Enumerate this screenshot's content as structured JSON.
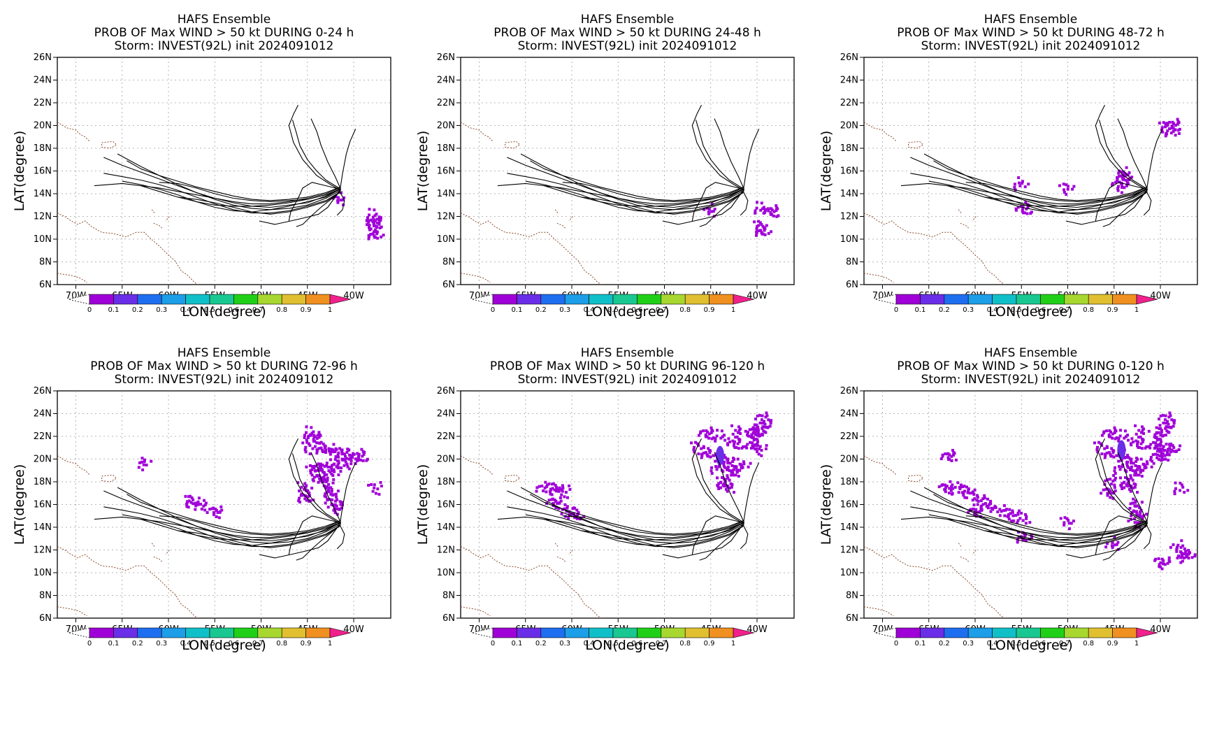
{
  "panels": [
    {
      "title1": "HAFS Ensemble",
      "title2": "PROB OF Max WIND > 50 kt DURING  0-24 h",
      "title3": "Storm: INVEST(92L) init 2024091012",
      "id": "p0024"
    },
    {
      "title1": "HAFS Ensemble",
      "title2": "PROB OF Max WIND > 50 kt DURING 24-48 h",
      "title3": "Storm: INVEST(92L) init 2024091012",
      "id": "p2448"
    },
    {
      "title1": "HAFS Ensemble",
      "title2": "PROB OF Max WIND > 50 kt DURING 48-72 h",
      "title3": "Storm: INVEST(92L) init 2024091012",
      "id": "p4872"
    },
    {
      "title1": "HAFS Ensemble",
      "title2": "PROB OF Max WIND > 50 kt DURING 72-96 h",
      "title3": "Storm: INVEST(92L) init 2024091012",
      "id": "p7296"
    },
    {
      "title1": "HAFS Ensemble",
      "title2": "PROB OF Max WIND > 50 kt DURING 96-120 h",
      "title3": "Storm: INVEST(92L) init 2024091012",
      "id": "p96120"
    },
    {
      "title1": "HAFS Ensemble",
      "title2": "PROB OF Max WIND > 50 kt DURING 0-120 h",
      "title3": "Storm: INVEST(92L) init 2024091012",
      "id": "p0120"
    }
  ],
  "axes": {
    "xlabel": "LON(degree)",
    "ylabel": "LAT(degree)",
    "xlim": [
      -72,
      -36
    ],
    "ylim": [
      6,
      26
    ],
    "xticks": [
      {
        "v": -70,
        "l": "70W"
      },
      {
        "v": -65,
        "l": "65W"
      },
      {
        "v": -60,
        "l": "60W"
      },
      {
        "v": -55,
        "l": "55W"
      },
      {
        "v": -50,
        "l": "50W"
      },
      {
        "v": -45,
        "l": "45W"
      },
      {
        "v": -40,
        "l": "40W"
      }
    ],
    "yticks": [
      {
        "v": 6,
        "l": "6N"
      },
      {
        "v": 8,
        "l": "8N"
      },
      {
        "v": 10,
        "l": "10N"
      },
      {
        "v": 12,
        "l": "12N"
      },
      {
        "v": 14,
        "l": "14N"
      },
      {
        "v": 16,
        "l": "16N"
      },
      {
        "v": 18,
        "l": "18N"
      },
      {
        "v": 20,
        "l": "20N"
      },
      {
        "v": 22,
        "l": "22N"
      },
      {
        "v": 24,
        "l": "24N"
      },
      {
        "v": 26,
        "l": "26N"
      }
    ],
    "grid": "dotted"
  },
  "colorbar": {
    "labels": [
      "0",
      "0.1",
      "0.2",
      "0.3",
      "0.4",
      "0.5",
      "0.6",
      "0.7",
      "0.8",
      "0.9",
      "1"
    ],
    "colors": [
      "#a000d8",
      "#6a2ee8",
      "#1e6ef0",
      "#1c9ee8",
      "#10c0c8",
      "#18c890",
      "#20d018",
      "#a8d830",
      "#e0c030",
      "#f09020",
      "#f04030"
    ],
    "overflow": "#f0208c"
  },
  "chart_data": {
    "type": "map",
    "tracks_lonlat": [
      [
        [
          -41.4,
          14.4
        ],
        [
          -43,
          13.8
        ],
        [
          -45,
          13.2
        ],
        [
          -47,
          13
        ],
        [
          -49,
          12.8
        ],
        [
          -51,
          12.9
        ],
        [
          -53,
          13.2
        ],
        [
          -55,
          13.6
        ],
        [
          -57,
          14.1
        ],
        [
          -59,
          14.8
        ],
        [
          -61,
          15.6
        ],
        [
          -63,
          16.4
        ],
        [
          -65.5,
          17.5
        ]
      ],
      [
        [
          -41.4,
          14.3
        ],
        [
          -43,
          13.6
        ],
        [
          -45,
          13.0
        ],
        [
          -47,
          12.7
        ],
        [
          -49,
          12.6
        ],
        [
          -51,
          12.7
        ],
        [
          -53,
          13.0
        ],
        [
          -55,
          13.5
        ],
        [
          -57,
          14.1
        ],
        [
          -59,
          14.7
        ],
        [
          -61,
          15.3
        ],
        [
          -63,
          15.9
        ],
        [
          -65,
          16.5
        ],
        [
          -67,
          17.2
        ]
      ],
      [
        [
          -41.5,
          14.4
        ],
        [
          -43,
          13.7
        ],
        [
          -45,
          13.3
        ],
        [
          -47,
          12.9
        ],
        [
          -49,
          12.6
        ],
        [
          -51,
          12.4
        ],
        [
          -53,
          12.5
        ],
        [
          -55,
          12.8
        ],
        [
          -57,
          13.3
        ],
        [
          -59,
          13.9
        ],
        [
          -61,
          14.4
        ],
        [
          -63,
          14.8
        ],
        [
          -65,
          15.1
        ]
      ],
      [
        [
          -41.4,
          14.2
        ],
        [
          -43,
          13.4
        ],
        [
          -45,
          12.9
        ],
        [
          -47,
          12.5
        ],
        [
          -49,
          12.3
        ],
        [
          -51,
          12.3
        ],
        [
          -53,
          12.6
        ],
        [
          -55,
          13.1
        ],
        [
          -57,
          13.7
        ],
        [
          -59,
          14.3
        ],
        [
          -61,
          14.8
        ],
        [
          -63,
          15.2
        ],
        [
          -65,
          15.5
        ],
        [
          -67,
          15.8
        ]
      ],
      [
        [
          -41.5,
          14.5
        ],
        [
          -43,
          14.0
        ],
        [
          -45,
          13.6
        ],
        [
          -47,
          13.3
        ],
        [
          -49,
          13.1
        ],
        [
          -51,
          13.1
        ],
        [
          -53,
          13.3
        ],
        [
          -55,
          13.6
        ],
        [
          -57,
          13.9
        ],
        [
          -59,
          14.2
        ],
        [
          -61,
          14.5
        ],
        [
          -63,
          14.7
        ]
      ],
      [
        [
          -41.4,
          14.6
        ],
        [
          -43,
          14.1
        ],
        [
          -45,
          13.7
        ],
        [
          -47,
          13.5
        ],
        [
          -49,
          13.4
        ],
        [
          -51,
          13.5
        ],
        [
          -53,
          13.8
        ],
        [
          -55,
          14.2
        ],
        [
          -57,
          14.6
        ],
        [
          -59,
          15.1
        ],
        [
          -61,
          15.6
        ],
        [
          -63,
          16.2
        ],
        [
          -64.5,
          16.9
        ]
      ],
      [
        [
          -41.6,
          14.3
        ],
        [
          -43,
          13.9
        ],
        [
          -45,
          13.5
        ],
        [
          -47,
          13.4
        ],
        [
          -49,
          13.3
        ],
        [
          -51,
          13.4
        ],
        [
          -53,
          13.6
        ],
        [
          -55,
          14.0
        ],
        [
          -57,
          14.5
        ],
        [
          -59,
          14.9
        ],
        [
          -61,
          15.0
        ]
      ],
      [
        [
          -41.5,
          14.1
        ],
        [
          -43,
          13.3
        ],
        [
          -45,
          12.8
        ],
        [
          -47,
          12.4
        ],
        [
          -49,
          12.2
        ],
        [
          -51,
          12.4
        ],
        [
          -53,
          12.8
        ],
        [
          -55,
          13.2
        ],
        [
          -57,
          13.5
        ],
        [
          -59,
          13.7
        ]
      ],
      [
        [
          -41.5,
          14.4
        ],
        [
          -43,
          13.9
        ],
        [
          -45,
          13.5
        ],
        [
          -47,
          13.2
        ],
        [
          -49,
          13.0
        ],
        [
          -51,
          12.9
        ],
        [
          -53,
          12.9
        ],
        [
          -55,
          13.0
        ],
        [
          -57,
          13.3
        ],
        [
          -59,
          13.7
        ],
        [
          -61,
          14.2
        ],
        [
          -63,
          14.7
        ],
        [
          -65,
          14.9
        ],
        [
          -68,
          14.7
        ]
      ],
      [
        [
          -41.4,
          14.3
        ],
        [
          -42.5,
          14.8
        ],
        [
          -44,
          15.6
        ],
        [
          -45.5,
          17
        ],
        [
          -46.5,
          18.5
        ],
        [
          -47,
          20
        ],
        [
          -46.5,
          21
        ],
        [
          -46,
          21.8
        ]
      ],
      [
        [
          -41.4,
          14.4
        ],
        [
          -42,
          15.5
        ],
        [
          -42.8,
          16.8
        ],
        [
          -43.5,
          18.2
        ],
        [
          -44,
          19.5
        ],
        [
          -44.6,
          20.6
        ]
      ],
      [
        [
          -41.6,
          14.5
        ],
        [
          -43,
          15.2
        ],
        [
          -44,
          16.0
        ],
        [
          -45,
          17.0
        ],
        [
          -45.8,
          18.2
        ],
        [
          -46.2,
          19.4
        ],
        [
          -46.6,
          20.5
        ]
      ],
      [
        [
          -41.5,
          14.2
        ],
        [
          -41.2,
          15.8
        ],
        [
          -40.8,
          17.5
        ],
        [
          -40.4,
          18.6
        ],
        [
          -39.8,
          19.7
        ]
      ],
      [
        [
          -41.5,
          14.4
        ],
        [
          -43,
          14.7
        ],
        [
          -44.5,
          15
        ],
        [
          -45.5,
          14.5
        ],
        [
          -46,
          13.6
        ],
        [
          -46.8,
          12.4
        ],
        [
          -47,
          11.6
        ]
      ],
      [
        [
          -41.5,
          14.2
        ],
        [
          -41,
          13.4
        ],
        [
          -41.2,
          12.6
        ],
        [
          -41.8,
          12.1
        ]
      ],
      [
        [
          -42,
          13.8
        ],
        [
          -43.4,
          12.9
        ],
        [
          -44.5,
          12.1
        ],
        [
          -45.5,
          11.3
        ],
        [
          -46.2,
          11.1
        ]
      ],
      [
        [
          -41.4,
          14.4
        ],
        [
          -42.8,
          12.8
        ],
        [
          -43.8,
          12.2
        ],
        [
          -45.2,
          11.9
        ],
        [
          -46.8,
          11.6
        ],
        [
          -48.5,
          11.3
        ],
        [
          -50.2,
          11.6
        ]
      ]
    ],
    "probability_regions": [
      {
        "panel": 0,
        "value": 0.05,
        "points": [
          [
            -38.0,
            12.2
          ],
          [
            -37.8,
            11.6
          ],
          [
            -38.1,
            11.4
          ],
          [
            -37.9,
            10.5
          ],
          [
            -41.7,
            13.6
          ]
        ]
      },
      {
        "panel": 1,
        "value": 0.05,
        "points": [
          [
            -39.7,
            12.8
          ],
          [
            -38.5,
            12.6
          ],
          [
            -39.8,
            11.3
          ],
          [
            -39.6,
            10.8
          ],
          [
            -45.2,
            12.6
          ]
        ]
      },
      {
        "panel": 2,
        "value": 0.05,
        "points": [
          [
            -38.9,
            19.6
          ],
          [
            -38.7,
            20.2
          ],
          [
            -39.6,
            20.0
          ],
          [
            -44.2,
            15.6
          ],
          [
            -44.0,
            15.8
          ],
          [
            -44.4,
            14.8
          ],
          [
            -55.3,
            15.0
          ],
          [
            -54.9,
            12.8
          ],
          [
            -50.2,
            14.6
          ]
        ]
      },
      {
        "panel": 3,
        "value": 0.06,
        "points": [
          [
            -44.8,
            22.4
          ],
          [
            -44.3,
            22.0
          ],
          [
            -45.0,
            21.2
          ],
          [
            -43.5,
            21.0
          ],
          [
            -42.5,
            20.8
          ],
          [
            -41.5,
            20.7
          ],
          [
            -40.5,
            20.4
          ],
          [
            -39.5,
            20.4
          ],
          [
            -40.5,
            19.8
          ],
          [
            -42,
            19.6
          ],
          [
            -43.5,
            19.5
          ],
          [
            -44.5,
            19.2
          ],
          [
            -42.5,
            18.9
          ],
          [
            -43.7,
            18.5
          ],
          [
            -43.0,
            18.0
          ],
          [
            -42.7,
            17.2
          ],
          [
            -42.4,
            16.4
          ],
          [
            -42.0,
            15.8
          ],
          [
            -45.5,
            17.6
          ],
          [
            -45.3,
            16.8
          ],
          [
            -37.8,
            17.6
          ],
          [
            -57.7,
            16.4
          ],
          [
            -56.5,
            16.0
          ],
          [
            -55.0,
            15.5
          ],
          [
            -62.9,
            19.8
          ]
        ]
      },
      {
        "panel": 4,
        "value": 0.07,
        "points": [
          [
            -44,
            22.1
          ],
          [
            -45.5,
            22.4
          ],
          [
            -46.6,
            21.2
          ],
          [
            -45.5,
            20.6
          ],
          [
            -44.2,
            20.3
          ],
          [
            -43.4,
            19.9
          ],
          [
            -44.5,
            19.4
          ],
          [
            -42.5,
            21.5
          ],
          [
            -43,
            18.8
          ],
          [
            -43.8,
            18.0
          ],
          [
            -43.3,
            17.6
          ],
          [
            -42.5,
            19.2
          ],
          [
            -41.8,
            19.6
          ],
          [
            -40.5,
            21.4
          ],
          [
            -39.8,
            21.0
          ],
          [
            -40.2,
            22.4
          ],
          [
            -39.5,
            23.8
          ],
          [
            -39.3,
            23.0
          ],
          [
            -42.2,
            22.6
          ],
          [
            -40.4,
            22.6
          ],
          [
            -61.0,
            17.3
          ],
          [
            -62.0,
            17.5
          ],
          [
            -63.2,
            17.6
          ],
          [
            -61.9,
            16.3
          ],
          [
            -60.8,
            15.7
          ],
          [
            -59.8,
            15.2
          ]
        ],
        "peak": [
          -44.0,
          20.3
        ]
      },
      {
        "panel": 5,
        "value": 0.08,
        "points": [
          [
            -44,
            22.1
          ],
          [
            -45.5,
            22.4
          ],
          [
            -46.6,
            21.2
          ],
          [
            -45.5,
            20.6
          ],
          [
            -44.2,
            20.3
          ],
          [
            -43.4,
            19.9
          ],
          [
            -44.5,
            19.4
          ],
          [
            -42.5,
            21.5
          ],
          [
            -43,
            18.8
          ],
          [
            -43.8,
            18.0
          ],
          [
            -43.3,
            17.6
          ],
          [
            -42.5,
            19.2
          ],
          [
            -41.8,
            19.6
          ],
          [
            -40.5,
            21.4
          ],
          [
            -39.8,
            21.0
          ],
          [
            -40.2,
            22.4
          ],
          [
            -39.5,
            23.8
          ],
          [
            -39.3,
            23.0
          ],
          [
            -42.2,
            22.6
          ],
          [
            -40.4,
            20.4
          ],
          [
            -39.7,
            20.6
          ],
          [
            -38.9,
            21.0
          ],
          [
            -45.4,
            18.2
          ],
          [
            -45.6,
            17.2
          ],
          [
            -43.0,
            16.2
          ],
          [
            -42.6,
            15.4
          ],
          [
            -42.7,
            14.6
          ],
          [
            -61.0,
            17.3
          ],
          [
            -62.0,
            17.5
          ],
          [
            -63.2,
            17.6
          ],
          [
            -60.0,
            16.6
          ],
          [
            -58.8,
            16.1
          ],
          [
            -57.5,
            15.6
          ],
          [
            -56.2,
            15.3
          ],
          [
            -54.9,
            14.8
          ],
          [
            -60.0,
            15.5
          ],
          [
            -37.9,
            11.6
          ],
          [
            -37.3,
            11.7
          ],
          [
            -38.2,
            12.4
          ],
          [
            -39.9,
            11.0
          ],
          [
            -38.0,
            17.5
          ],
          [
            -62.9,
            20.4
          ],
          [
            -50.2,
            14.6
          ],
          [
            -55.0,
            13.2
          ],
          [
            -45.2,
            12.6
          ]
        ],
        "peak": [
          -44.2,
          20.8
        ]
      }
    ]
  }
}
